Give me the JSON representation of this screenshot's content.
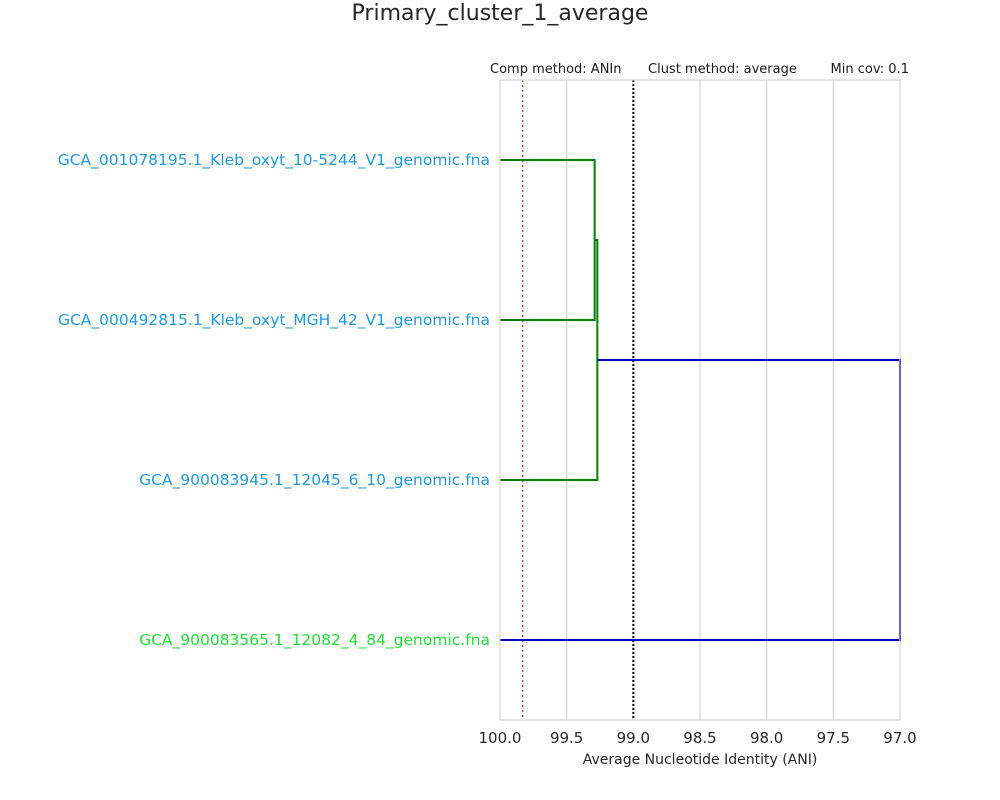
{
  "chart_data": {
    "type": "dendrogram",
    "title": "Primary_cluster_1_average",
    "header": {
      "comp_method": "Comp method: ANIn",
      "clust_method": "Clust method: average",
      "min_cov": "Min cov: 0.1"
    },
    "xlabel": "Average Nucleotide Identity (ANI)",
    "xlim": [
      100.0,
      97.0
    ],
    "xticks": [
      "100.0",
      "99.5",
      "99.0",
      "98.5",
      "98.0",
      "97.5",
      "97.0"
    ],
    "grid": true,
    "threshold_lines": [
      {
        "value": 99.83,
        "color": "#e41a1c",
        "style": "dotted"
      },
      {
        "value": 99.0,
        "color": "#000000",
        "style": "dotted"
      }
    ],
    "leaves": [
      {
        "label": "GCA_001078195.1_Kleb_oxyt_10-5244_V1_genomic.fna",
        "color": "#1f9bde"
      },
      {
        "label": "GCA_000492815.1_Kleb_oxyt_MGH_42_V1_genomic.fna",
        "color": "#1f9bde"
      },
      {
        "label": "GCA_900083945.1_12045_6_10_genomic.fna",
        "color": "#1f9bde"
      },
      {
        "label": "GCA_900083565.1_12082_4_84_genomic.fna",
        "color": "#22e03a"
      }
    ],
    "merges": [
      {
        "left": 0,
        "right": 1,
        "ani": 99.29,
        "color": "#008000"
      },
      {
        "left": "m0",
        "right": 2,
        "ani": 99.27,
        "color": "#008000"
      },
      {
        "left": "m1",
        "right": 3,
        "ani": 97.0,
        "color": "#0000cc"
      }
    ]
  }
}
